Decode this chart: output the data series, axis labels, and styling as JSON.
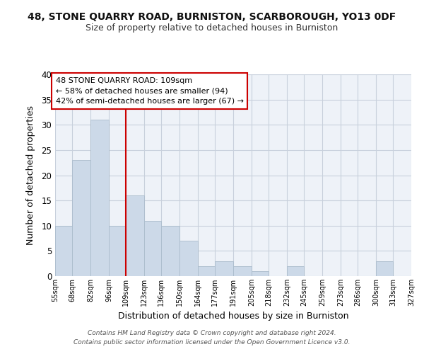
{
  "title": "48, STONE QUARRY ROAD, BURNISTON, SCARBOROUGH, YO13 0DF",
  "subtitle": "Size of property relative to detached houses in Burniston",
  "xlabel": "Distribution of detached houses by size in Burniston",
  "ylabel": "Number of detached properties",
  "bar_color": "#ccd9e8",
  "bar_edge_color": "#aabccc",
  "vline_x": 109,
  "vline_color": "#cc0000",
  "annotation_text": "48 STONE QUARRY ROAD: 109sqm\n← 58% of detached houses are smaller (94)\n42% of semi-detached houses are larger (67) →",
  "annotation_box_color": "#ffffff",
  "annotation_box_edge": "#cc0000",
  "footer": "Contains HM Land Registry data © Crown copyright and database right 2024.\nContains public sector information licensed under the Open Government Licence v3.0.",
  "bins": [
    55,
    68,
    82,
    96,
    109,
    123,
    136,
    150,
    164,
    177,
    191,
    205,
    218,
    232,
    245,
    259,
    273,
    286,
    300,
    313,
    327
  ],
  "counts": [
    10,
    23,
    31,
    10,
    16,
    11,
    10,
    7,
    2,
    3,
    2,
    1,
    0,
    2,
    0,
    0,
    0,
    0,
    3,
    0
  ],
  "xlabels": [
    "55sqm",
    "68sqm",
    "82sqm",
    "96sqm",
    "109sqm",
    "123sqm",
    "136sqm",
    "150sqm",
    "164sqm",
    "177sqm",
    "191sqm",
    "205sqm",
    "218sqm",
    "232sqm",
    "245sqm",
    "259sqm",
    "273sqm",
    "286sqm",
    "300sqm",
    "313sqm",
    "327sqm"
  ],
  "ylim": [
    0,
    40
  ],
  "background_color": "#ffffff",
  "plot_bg_color": "#eef2f8",
  "grid_color": "#c8d0dc"
}
